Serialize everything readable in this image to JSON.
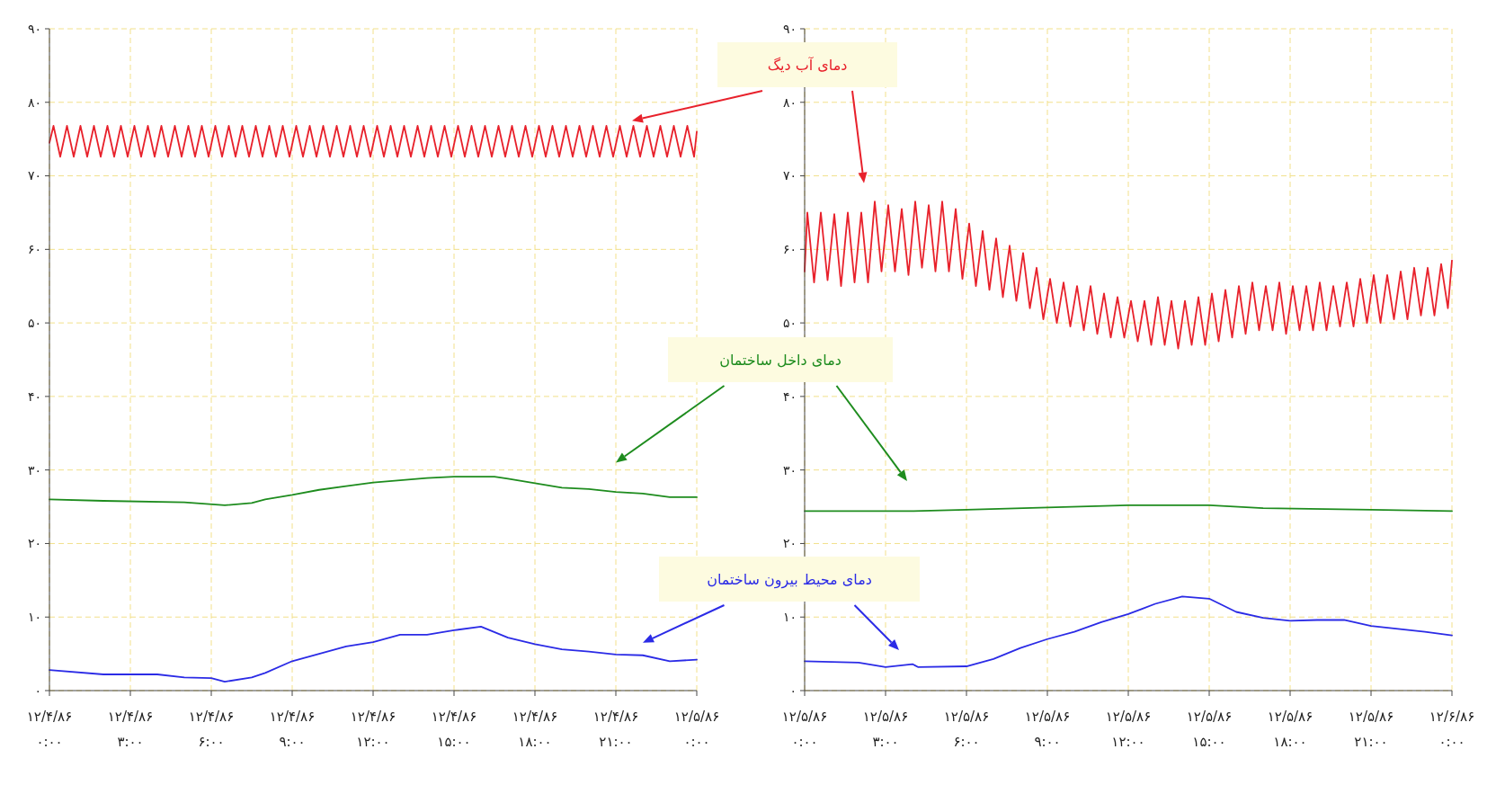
{
  "chart_data": [
    {
      "type": "line",
      "xlim": [
        0,
        24
      ],
      "ylim": [
        0,
        90
      ],
      "grid": true,
      "xticks": [
        {
          "value": 0,
          "label": "۰:۰۰"
        },
        {
          "value": 3,
          "label": "۳:۰۰"
        },
        {
          "value": 6,
          "label": "۶:۰۰"
        },
        {
          "value": 9,
          "label": "۹:۰۰"
        },
        {
          "value": 12,
          "label": "۱۲:۰۰"
        },
        {
          "value": 15,
          "label": "۱۵:۰۰"
        },
        {
          "value": 18,
          "label": "۱۸:۰۰"
        },
        {
          "value": 21,
          "label": "۲۱:۰۰"
        },
        {
          "value": 24,
          "label": "۰:۰۰"
        }
      ],
      "annotations": [
        "۱۲/۴/۸۶",
        "۱۲/۴/۸۶",
        "۱۲/۴/۸۶",
        "۱۲/۴/۸۶",
        "۱۲/۴/۸۶",
        "۱۲/۴/۸۶",
        "۱۲/۴/۸۶",
        "۱۲/۴/۸۶",
        "۱۲/۵/۸۶"
      ],
      "yticks": [
        {
          "value": 0,
          "label": "۰"
        },
        {
          "value": 10,
          "label": "۱۰"
        },
        {
          "value": 20,
          "label": "۲۰"
        },
        {
          "value": 30,
          "label": "۳۰"
        },
        {
          "value": 40,
          "label": "۴۰"
        },
        {
          "value": 50,
          "label": "۵۰"
        },
        {
          "value": 60,
          "label": "۶۰"
        },
        {
          "value": 70,
          "label": "۷۰"
        },
        {
          "value": 80,
          "label": "۸۰"
        },
        {
          "value": 90,
          "label": "۹۰"
        }
      ],
      "series": [
        {
          "name": "دمای آب دیگ",
          "color": "#e8212b",
          "x": [
            0,
            0.15,
            0.4,
            0.65,
            0.9,
            1.15,
            1.4,
            1.65,
            1.9,
            2.15,
            2.4,
            2.65,
            2.9,
            3.15,
            3.4,
            3.65,
            3.9,
            4.15,
            4.4,
            4.65,
            4.9,
            5.15,
            5.4,
            5.65,
            5.9,
            6.15,
            6.4,
            6.65,
            6.9,
            7.15,
            7.4,
            7.65,
            7.9,
            8.15,
            8.4,
            8.65,
            8.9,
            9.15,
            9.4,
            9.65,
            9.9,
            10.15,
            10.4,
            10.65,
            10.9,
            11.15,
            11.4,
            11.65,
            11.9,
            12.15,
            12.4,
            12.65,
            12.9,
            13.15,
            13.4,
            13.65,
            13.9,
            14.15,
            14.4,
            14.65,
            14.9,
            15.15,
            15.4,
            15.65,
            15.9,
            16.15,
            16.4,
            16.65,
            16.9,
            17.15,
            17.4,
            17.65,
            17.9,
            18.15,
            18.4,
            18.65,
            18.9,
            19.15,
            19.4,
            19.65,
            19.9,
            20.15,
            20.4,
            20.65,
            20.9,
            21.15,
            21.4,
            21.65,
            21.9,
            22.15,
            22.4,
            22.65,
            22.9,
            23.15,
            23.4,
            23.65,
            23.9,
            24
          ],
          "values": [
            74.5,
            76.8,
            72.6,
            76.8,
            72.6,
            76.8,
            72.6,
            76.8,
            72.6,
            76.8,
            72.6,
            76.8,
            72.6,
            76.8,
            72.6,
            76.8,
            72.6,
            76.8,
            72.6,
            76.8,
            72.6,
            76.8,
            72.6,
            76.8,
            72.6,
            76.8,
            72.6,
            76.8,
            72.6,
            76.8,
            72.6,
            76.8,
            72.6,
            76.8,
            72.6,
            76.8,
            72.6,
            76.8,
            72.6,
            76.8,
            72.6,
            76.8,
            72.6,
            76.8,
            72.6,
            76.8,
            72.6,
            76.8,
            72.6,
            76.8,
            72.6,
            76.8,
            72.6,
            76.8,
            72.6,
            76.8,
            72.6,
            76.8,
            72.6,
            76.8,
            72.6,
            76.8,
            72.6,
            76.8,
            72.6,
            76.8,
            72.6,
            76.8,
            72.6,
            76.8,
            72.6,
            76.8,
            72.6,
            76.8,
            72.6,
            76.8,
            72.6,
            76.8,
            72.6,
            76.8,
            72.6,
            76.8,
            72.6,
            76.8,
            72.6,
            76.8,
            72.6,
            76.8,
            72.6,
            76.8,
            72.6,
            76.8,
            72.6,
            76.8,
            72.6,
            76.8,
            72.6,
            76
          ]
        },
        {
          "name": "دمای داخل ساختمان",
          "color": "#1e8c1e",
          "x": [
            0,
            2,
            5,
            6.5,
            7.5,
            8,
            9,
            10,
            11,
            12,
            14,
            15,
            16.5,
            17,
            18,
            19,
            20,
            21,
            22,
            23,
            24
          ],
          "values": [
            26,
            25.8,
            25.6,
            25.2,
            25.5,
            26,
            26.6,
            27.3,
            27.8,
            28.3,
            28.9,
            29.1,
            29.1,
            28.8,
            28.2,
            27.6,
            27.4,
            27,
            26.8,
            26.3,
            26.3
          ]
        },
        {
          "name": "دمای محیط بیرون ساختمان",
          "color": "#2b2be6",
          "x": [
            0,
            2,
            4,
            5,
            6,
            6.5,
            7.5,
            8,
            9,
            10,
            11,
            12,
            13,
            14,
            14.5,
            15,
            16,
            17,
            18,
            19,
            20,
            21,
            22,
            23,
            24
          ],
          "values": [
            2.8,
            2.2,
            2.2,
            1.8,
            1.7,
            1.2,
            1.8,
            2.4,
            4,
            5,
            6,
            6.6,
            7.6,
            7.6,
            7.9,
            8.2,
            8.7,
            7.2,
            6.3,
            5.6,
            5.3,
            4.9,
            4.8,
            4,
            4.2
          ]
        }
      ]
    },
    {
      "type": "line",
      "xlim": [
        0,
        24
      ],
      "ylim": [
        0,
        90
      ],
      "grid": true,
      "xticks": [
        {
          "value": 0,
          "label": "۰:۰۰"
        },
        {
          "value": 3,
          "label": "۳:۰۰"
        },
        {
          "value": 6,
          "label": "۶:۰۰"
        },
        {
          "value": 9,
          "label": "۹:۰۰"
        },
        {
          "value": 12,
          "label": "۱۲:۰۰"
        },
        {
          "value": 15,
          "label": "۱۵:۰۰"
        },
        {
          "value": 18,
          "label": "۱۸:۰۰"
        },
        {
          "value": 21,
          "label": "۲۱:۰۰"
        },
        {
          "value": 24,
          "label": "۰:۰۰"
        }
      ],
      "annotations": [
        "۱۲/۵/۸۶",
        "۱۲/۵/۸۶",
        "۱۲/۵/۸۶",
        "۱۲/۵/۸۶",
        "۱۲/۵/۸۶",
        "۱۲/۵/۸۶",
        "۱۲/۵/۸۶",
        "۱۲/۵/۸۶",
        "۱۲/۶/۸۶"
      ],
      "yticks": [
        {
          "value": 0,
          "label": "۰"
        },
        {
          "value": 10,
          "label": "۱۰"
        },
        {
          "value": 20,
          "label": "۲۰"
        },
        {
          "value": 30,
          "label": "۳۰"
        },
        {
          "value": 40,
          "label": "۴۰"
        },
        {
          "value": 50,
          "label": "۵۰"
        },
        {
          "value": 60,
          "label": "۶۰"
        },
        {
          "value": 70,
          "label": "۷۰"
        },
        {
          "value": 80,
          "label": "۸۰"
        },
        {
          "value": 90,
          "label": "۹۰"
        }
      ],
      "series": [
        {
          "color": "#e8212b",
          "x": [
            0,
            0.1,
            0.35,
            0.6,
            0.85,
            1.1,
            1.35,
            1.6,
            1.85,
            2.1,
            2.35,
            2.6,
            2.85,
            3.1,
            3.35,
            3.6,
            3.85,
            4.1,
            4.35,
            4.6,
            4.85,
            5.1,
            5.35,
            5.6,
            5.85,
            6.1,
            6.35,
            6.6,
            6.85,
            7.1,
            7.35,
            7.6,
            7.85,
            8.1,
            8.35,
            8.6,
            8.85,
            9.1,
            9.35,
            9.6,
            9.85,
            10.1,
            10.35,
            10.6,
            10.85,
            11.1,
            11.35,
            11.6,
            11.85,
            12.1,
            12.35,
            12.6,
            12.85,
            13.1,
            13.35,
            13.6,
            13.85,
            14.1,
            14.35,
            14.6,
            14.85,
            15.1,
            15.35,
            15.6,
            15.85,
            16.1,
            16.35,
            16.6,
            16.85,
            17.1,
            17.35,
            17.6,
            17.85,
            18.1,
            18.35,
            18.6,
            18.85,
            19.1,
            19.35,
            19.6,
            19.85,
            20.1,
            20.35,
            20.6,
            20.85,
            21.1,
            21.35,
            21.6,
            21.85,
            22.1,
            22.35,
            22.6,
            22.85,
            23.1,
            23.35,
            23.6,
            23.85,
            24
          ],
          "values": [
            57,
            65,
            55.5,
            65,
            55.8,
            64.8,
            55,
            65,
            55.5,
            65,
            55.5,
            66.5,
            57,
            66,
            57,
            65.5,
            56.5,
            66.5,
            57.5,
            66,
            57,
            66.5,
            57,
            65.5,
            56,
            63.5,
            55,
            62.5,
            54.5,
            61.5,
            53.5,
            60.5,
            53,
            59.5,
            52,
            57.5,
            50.5,
            56,
            50,
            55.5,
            49.5,
            55,
            49,
            55,
            48.5,
            54,
            48,
            53.5,
            48,
            53,
            47.5,
            53,
            47,
            53.5,
            47,
            53,
            46.5,
            53,
            47,
            53.5,
            47,
            54,
            47.5,
            54.5,
            48,
            55,
            48.5,
            55.5,
            49,
            55,
            49,
            55.5,
            48.5,
            55,
            49,
            55,
            49,
            55.5,
            49,
            55,
            49.5,
            55.5,
            49.5,
            56,
            50,
            56.5,
            50,
            56.5,
            50.5,
            57,
            50.5,
            57.5,
            51,
            57.5,
            51,
            58,
            52,
            58.5
          ]
        },
        {
          "color": "#1e8c1e",
          "x": [
            0,
            4,
            6,
            9,
            12,
            15,
            17,
            21,
            24
          ],
          "values": [
            24.4,
            24.4,
            24.6,
            24.9,
            25.2,
            25.2,
            24.8,
            24.6,
            24.4
          ]
        },
        {
          "color": "#2b2be6",
          "x": [
            0,
            2,
            3,
            4,
            4.2,
            6,
            7,
            8,
            9,
            10,
            11,
            12,
            13,
            14,
            15,
            16,
            17,
            18,
            19,
            20,
            21,
            22,
            23,
            24
          ],
          "values": [
            4,
            3.8,
            3.2,
            3.6,
            3.2,
            3.3,
            4.3,
            5.8,
            7,
            8,
            9.3,
            10.4,
            11.8,
            12.8,
            12.5,
            10.7,
            9.9,
            9.5,
            9.6,
            9.6,
            8.8,
            8.4,
            8,
            7.5
          ]
        }
      ]
    }
  ]
}
